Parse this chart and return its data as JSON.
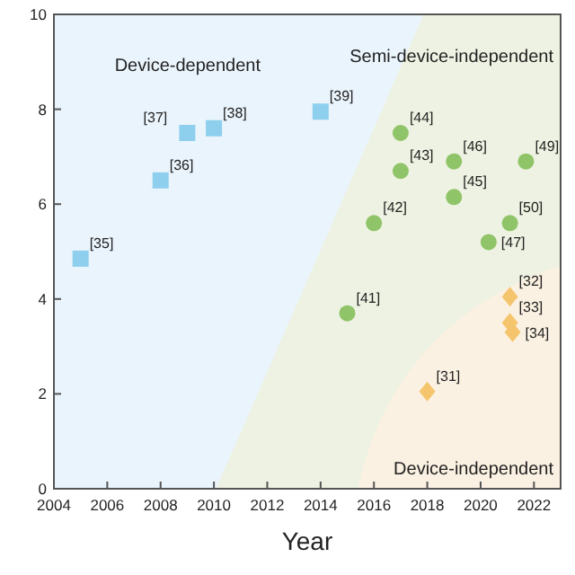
{
  "chart_data": {
    "type": "scatter",
    "xlabel": "Year",
    "xlim": [
      2004,
      2023
    ],
    "xticks": [
      2004,
      2006,
      2008,
      2010,
      2012,
      2014,
      2016,
      2018,
      2020,
      2022
    ],
    "ylim": [
      0,
      10
    ],
    "yticks": [
      0,
      2,
      4,
      6,
      8,
      10
    ],
    "grid": false,
    "annotations": [
      "Device-dependent",
      "Semi-device-independent",
      "Device-independent",
      {
        "text": "[35]",
        "x": 2005,
        "y": 4.85
      },
      {
        "text": "[36]",
        "x": 2008,
        "y": 6.5
      },
      {
        "text": "[37]",
        "x": 2009,
        "y": 7.5
      },
      {
        "text": "[38]",
        "x": 2010,
        "y": 7.6
      },
      {
        "text": "[39]",
        "x": 2014,
        "y": 7.95
      },
      {
        "text": "[41]",
        "x": 2015,
        "y": 3.7
      },
      {
        "text": "[42]",
        "x": 2016,
        "y": 5.6
      },
      {
        "text": "[43]",
        "x": 2017,
        "y": 6.7
      },
      {
        "text": "[44]",
        "x": 2017,
        "y": 7.5
      },
      {
        "text": "[45]",
        "x": 2019,
        "y": 6.15
      },
      {
        "text": "[46]",
        "x": 2019,
        "y": 6.9
      },
      {
        "text": "[47]",
        "x": 2020.3,
        "y": 5.2
      },
      {
        "text": "[50]",
        "x": 2021.1,
        "y": 5.6
      },
      {
        "text": "[49]",
        "x": 2021.7,
        "y": 6.9
      },
      {
        "text": "[31]",
        "x": 2018,
        "y": 2.05
      },
      {
        "text": "[32]",
        "x": 2021.1,
        "y": 4.05
      },
      {
        "text": "[33]",
        "x": 2021.1,
        "y": 3.5
      },
      {
        "text": "[34]",
        "x": 2021.2,
        "y": 3.3
      }
    ],
    "series": [
      {
        "marker": "square",
        "color": "#8ecfee",
        "x": [
          2005,
          2008,
          2009,
          2010,
          2014
        ],
        "values": [
          4.85,
          6.5,
          7.5,
          7.6,
          7.95
        ]
      },
      {
        "marker": "circle",
        "color": "#8fc468",
        "x": [
          2015,
          2016,
          2017,
          2017,
          2019,
          2019,
          2020.3,
          2021.1,
          2021.7
        ],
        "values": [
          3.7,
          5.6,
          6.7,
          7.5,
          6.15,
          6.9,
          5.2,
          5.6,
          6.9
        ]
      },
      {
        "marker": "diamond",
        "color": "#f5c56e",
        "x": [
          2018,
          2021.1,
          2021.1,
          2021.2
        ],
        "values": [
          2.05,
          4.05,
          3.5,
          3.3
        ]
      }
    ]
  }
}
